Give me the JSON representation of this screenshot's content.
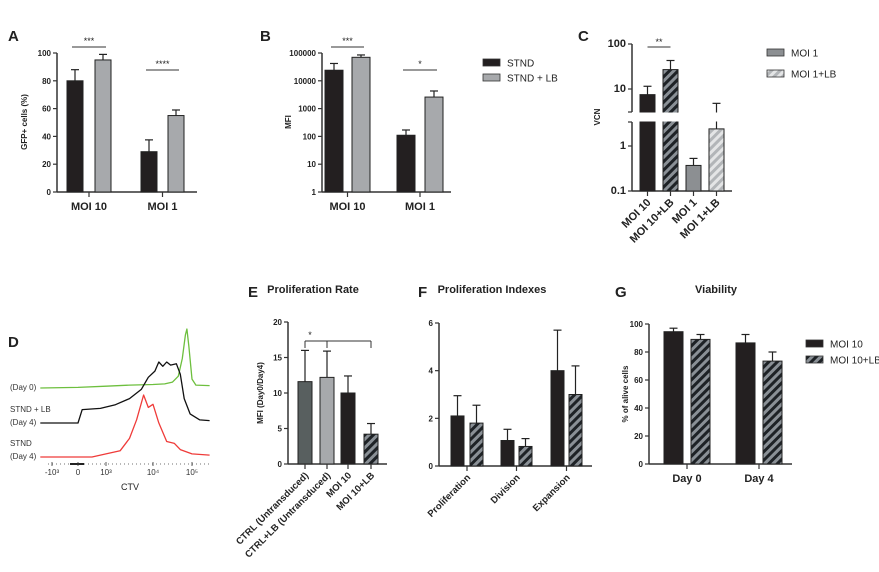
{
  "chart_data": [
    {
      "panel": "A",
      "type": "bar",
      "title": "",
      "ylabel": "GFP+ cells (%)",
      "yscale": "linear",
      "ylim": [
        0,
        100
      ],
      "yticks": [
        0,
        20,
        40,
        60,
        80,
        100
      ],
      "ytick_labels": [
        "0",
        "20",
        "40",
        "60",
        "80",
        "100"
      ],
      "categories": [
        "MOI 10",
        "MOI 1"
      ],
      "series": [
        {
          "name": "STND",
          "fill": "#231f20",
          "values": [
            80,
            29
          ],
          "errors": [
            8,
            8.5
          ]
        },
        {
          "name": "STND + LB",
          "fill": "#a7a9ac",
          "values": [
            95,
            55
          ],
          "errors": [
            4,
            4
          ]
        }
      ],
      "significance": [
        {
          "label": "***",
          "category": 0
        },
        {
          "label": "****",
          "category": 1
        }
      ]
    },
    {
      "panel": "B",
      "type": "bar",
      "title": "",
      "ylabel": "MFI",
      "yscale": "log",
      "ylim": [
        1,
        100000
      ],
      "yticks": [
        1,
        10,
        100,
        1000,
        10000,
        100000
      ],
      "ytick_labels": [
        "1",
        "10",
        "100",
        "1000",
        "10000",
        "100000"
      ],
      "categories": [
        "MOI 10",
        "MOI 1"
      ],
      "series": [
        {
          "name": "STND",
          "fill": "#231f20",
          "values": [
            24000,
            110
          ],
          "errors": [
            18000,
            60
          ]
        },
        {
          "name": "STND + LB",
          "fill": "#a7a9ac",
          "values": [
            70000,
            2600
          ],
          "errors": [
            15000,
            1700
          ]
        }
      ],
      "legend": {
        "placement": "right",
        "entries": [
          {
            "label": "STND",
            "fill": "#231f20"
          },
          {
            "label": "STND + LB",
            "fill": "#a7a9ac"
          }
        ]
      },
      "significance": [
        {
          "label": "***",
          "category": 0
        },
        {
          "label": "*",
          "category": 1
        }
      ]
    },
    {
      "panel": "C",
      "type": "bar",
      "title": "",
      "ylabel": "VCN",
      "yscale": "log (broken axis)",
      "ylim": [
        0.1,
        100
      ],
      "yticks": [
        0.1,
        1,
        10,
        100
      ],
      "ytick_labels": [
        "0.1",
        "1",
        "10",
        "100"
      ],
      "categories": [
        "MOI 10",
        "MOI 10+LB",
        "MOI 1",
        "MOI 1+LB"
      ],
      "series": [
        {
          "name": "VCN",
          "values": [
            7.5,
            27,
            0.37,
            2.4
          ],
          "errors": [
            4,
            16,
            0.16,
            2.4
          ],
          "fills": [
            "#231f20",
            "hatch-dark",
            "#8c8f92",
            "hatch-light"
          ]
        }
      ],
      "legend": {
        "placement": "right",
        "entries": [
          {
            "label": "MOI 1",
            "fill": "#8c8f92"
          },
          {
            "label": "MOI 1+LB",
            "fill": "hatch-light"
          }
        ]
      },
      "significance": [
        {
          "label": "**",
          "bars": [
            0,
            1
          ]
        }
      ]
    },
    {
      "panel": "D",
      "type": "histogram",
      "xlabel": "CTV",
      "xtick_labels": [
        "-10³",
        "0",
        "10³",
        "10⁴",
        "10⁵"
      ],
      "xticks": [
        -1,
        0,
        1,
        2,
        3
      ],
      "series": [
        {
          "name": "Day 0",
          "labels": [
            "(Day 0)"
          ],
          "color": "#6dbf3e",
          "points": [
            [
              -1.45,
              0
            ],
            [
              0,
              0.01
            ],
            [
              1,
              0.03
            ],
            [
              1.5,
              0.05
            ],
            [
              2,
              0.06
            ],
            [
              2.3,
              0.07
            ],
            [
              2.5,
              0.1
            ],
            [
              2.65,
              0.2
            ],
            [
              2.75,
              0.5
            ],
            [
              2.83,
              0.9
            ],
            [
              2.87,
              1.0
            ],
            [
              2.92,
              0.7
            ],
            [
              3.0,
              0.15
            ],
            [
              3.1,
              0.05
            ],
            [
              3.45,
              0.04
            ]
          ]
        },
        {
          "name": "STND + LB (Day 4)",
          "labels": [
            "STND + LB",
            "(Day 4)"
          ],
          "color": "#111111",
          "points": [
            [
              -1.45,
              0
            ],
            [
              0,
              0
            ],
            [
              0.15,
              0.22
            ],
            [
              0.8,
              0.24
            ],
            [
              1.2,
              0.3
            ],
            [
              1.5,
              0.4
            ],
            [
              1.75,
              0.55
            ],
            [
              1.9,
              0.75
            ],
            [
              2.05,
              0.85
            ],
            [
              2.15,
              1.0
            ],
            [
              2.25,
              0.93
            ],
            [
              2.35,
              1.0
            ],
            [
              2.45,
              0.95
            ],
            [
              2.6,
              0.97
            ],
            [
              2.7,
              0.8
            ],
            [
              2.8,
              0.4
            ],
            [
              2.95,
              0.15
            ],
            [
              3.2,
              0.05
            ],
            [
              3.45,
              0.04
            ]
          ]
        },
        {
          "name": "STND (Day 4)",
          "labels": [
            "STND",
            "(Day 4)"
          ],
          "color": "#ef3b39",
          "points": [
            [
              -1.45,
              0
            ],
            [
              0.5,
              0
            ],
            [
              1,
              0.05
            ],
            [
              1.3,
              0.1
            ],
            [
              1.5,
              0.3
            ],
            [
              1.65,
              0.6
            ],
            [
              1.8,
              1.0
            ],
            [
              1.9,
              0.8
            ],
            [
              2.0,
              0.85
            ],
            [
              2.15,
              0.55
            ],
            [
              2.35,
              0.25
            ],
            [
              2.55,
              0.22
            ],
            [
              2.7,
              0.12
            ],
            [
              3.0,
              0.05
            ],
            [
              3.45,
              0.03
            ]
          ]
        }
      ]
    },
    {
      "panel": "E",
      "type": "bar",
      "title": "Proliferation Rate",
      "ylabel": "MFI (Day0/Day4)",
      "yscale": "linear",
      "ylim": [
        0,
        20
      ],
      "yticks": [
        0,
        5,
        10,
        15,
        20
      ],
      "ytick_labels": [
        "0",
        "5",
        "10",
        "15",
        "20"
      ],
      "categories": [
        "CTRL (Untransduced)",
        "CTRL+LB (Untransduced)",
        "MOI 10",
        "MOI 10+LB"
      ],
      "series": [
        {
          "name": "Proliferation Rate",
          "values": [
            11.6,
            12.2,
            10,
            4.2
          ],
          "errors": [
            4.4,
            3.7,
            2.4,
            1.5
          ],
          "fills": [
            "#585f5f",
            "#a7a9ac",
            "#231f20",
            "hatch-dark"
          ]
        }
      ],
      "significance": [
        {
          "label": "*",
          "bars": [
            0,
            1,
            3
          ]
        }
      ]
    },
    {
      "panel": "F",
      "type": "bar",
      "title": "Proliferation Indexes",
      "ylabel": "",
      "yscale": "linear",
      "ylim": [
        0,
        6
      ],
      "yticks": [
        0,
        2,
        4,
        6
      ],
      "ytick_labels": [
        "0",
        "2",
        "4",
        "6"
      ],
      "categories": [
        "Proliferation",
        "Division",
        "Expansion"
      ],
      "series": [
        {
          "name": "MOI 10",
          "fill": "#231f20",
          "values": [
            2.1,
            1.07,
            4.0
          ],
          "errors": [
            0.85,
            0.47,
            1.7
          ]
        },
        {
          "name": "MOI 10+LB",
          "fill": "hatch-dark",
          "values": [
            1.8,
            0.82,
            3.0
          ],
          "errors": [
            0.75,
            0.33,
            1.2
          ]
        }
      ]
    },
    {
      "panel": "G",
      "type": "bar",
      "title": "Viability",
      "ylabel": "% of  alive cells",
      "yscale": "linear",
      "ylim": [
        0,
        100
      ],
      "yticks": [
        0,
        20,
        40,
        60,
        80,
        100
      ],
      "ytick_labels": [
        "0",
        "20",
        "40",
        "60",
        "80",
        "100"
      ],
      "categories": [
        "Day 0",
        "Day 4"
      ],
      "series": [
        {
          "name": "MOI 10",
          "fill": "#231f20",
          "values": [
            94.5,
            86.5
          ],
          "errors": [
            2.5,
            6
          ]
        },
        {
          "name": "MOI 10+LB",
          "fill": "hatch-dark",
          "values": [
            89,
            73.5
          ],
          "errors": [
            3.5,
            6.5
          ]
        }
      ],
      "legend": {
        "placement": "right",
        "entries": [
          {
            "label": "MOI 10",
            "fill": "#231f20"
          },
          {
            "label": "MOI 10+LB",
            "fill": "hatch-dark"
          }
        ]
      }
    }
  ]
}
